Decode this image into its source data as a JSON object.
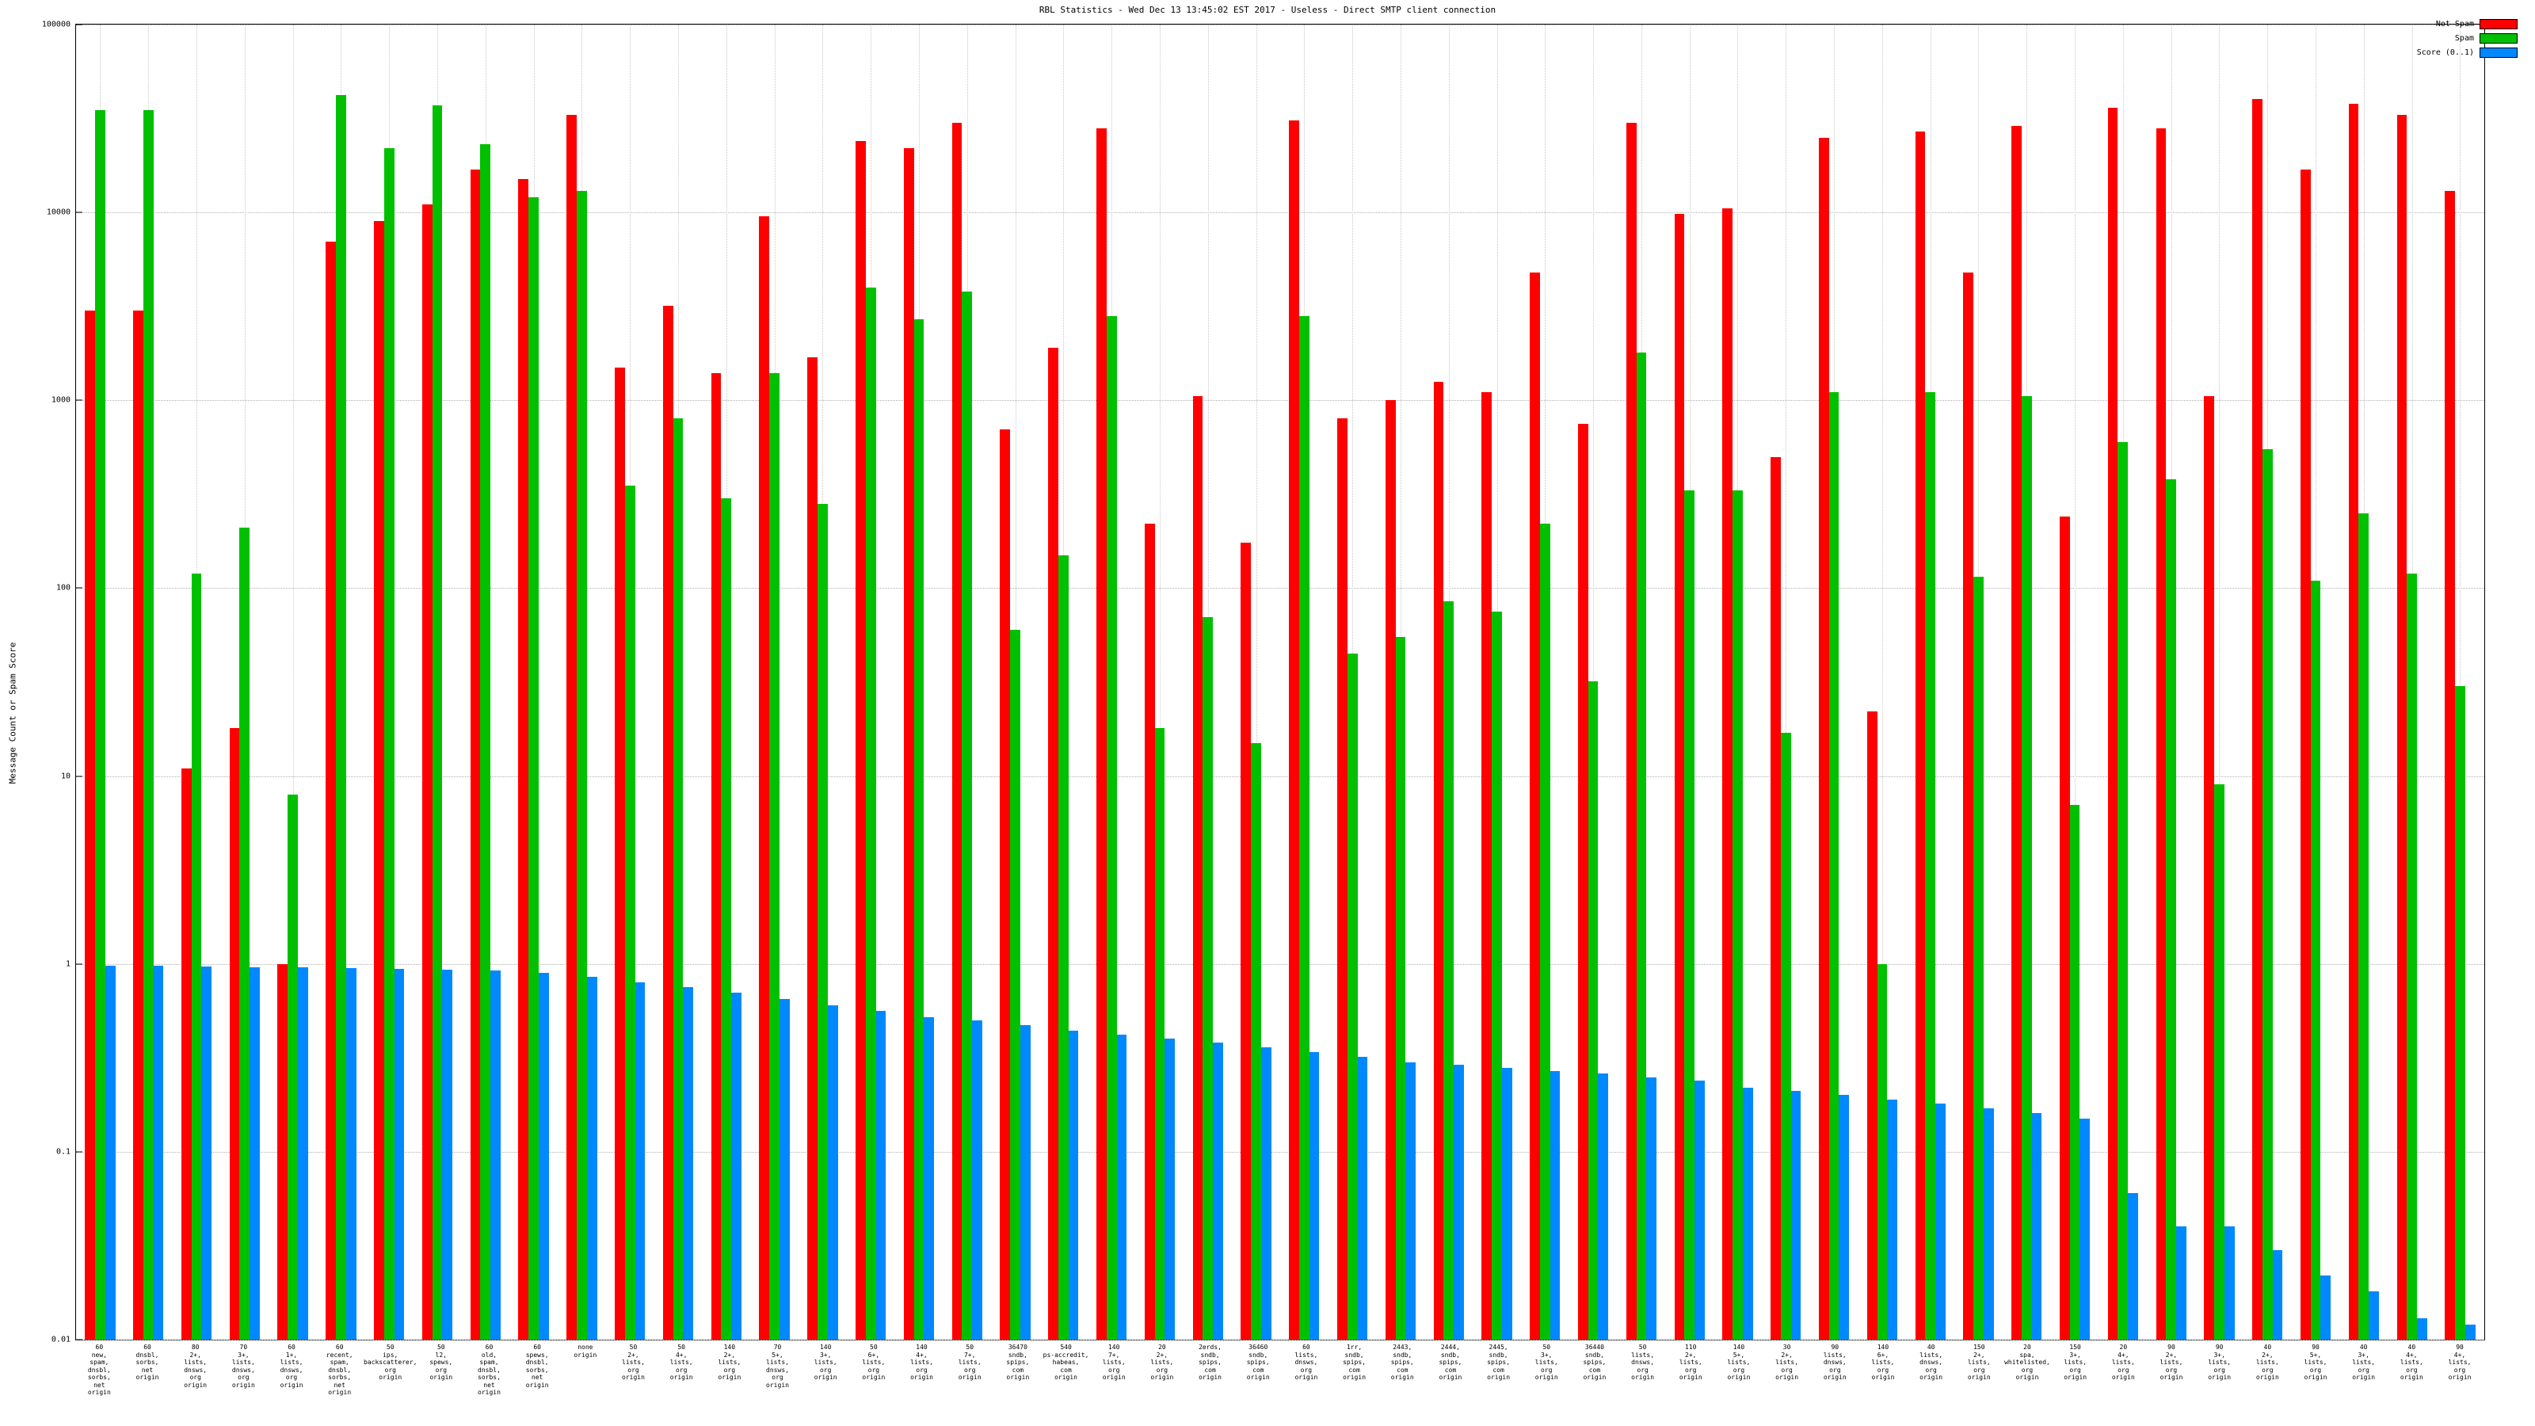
{
  "title": "RBL Statistics - Wed Dec 13 13:45:02 EST 2017 - Useless - Direct SMTP client connection",
  "chart_data": {
    "type": "bar",
    "title": "RBL Statistics - Wed Dec 13 13:45:02 EST 2017 - Useless - Direct SMTP client connection",
    "ylabel": "Message Count or Spam Score",
    "xlabel": "",
    "log_scale": true,
    "grid": true,
    "legend_position": "top-right",
    "ylim": [
      0.01,
      100000
    ],
    "y_ticks": [
      "100000",
      "10000",
      "1000",
      "100",
      "10",
      "1",
      "0.1",
      "0.01"
    ],
    "categories": [
      [
        "60",
        "new,",
        "spam,",
        "dnsbl,",
        "sorbs,",
        "net",
        "origin"
      ],
      [
        "60",
        "dnsbl,",
        "sorbs,",
        "net",
        "origin"
      ],
      [
        "80",
        "2+,",
        "lists,",
        "dnsws,",
        "org",
        "origin"
      ],
      [
        "70",
        "3+,",
        "lists,",
        "dnsws,",
        "org",
        "origin"
      ],
      [
        "60",
        "1+,",
        "lists,",
        "dnsws,",
        "org",
        "origin"
      ],
      [
        "60",
        "recent,",
        "spam,",
        "dnsbl,",
        "sorbs,",
        "net",
        "origin"
      ],
      [
        "50",
        "ips,",
        "backscatterer,",
        "org",
        "origin"
      ],
      [
        "50",
        "l2,",
        "spews,",
        "org",
        "origin"
      ],
      [
        "60",
        "old,",
        "spam,",
        "dnsbl,",
        "sorbs,",
        "net",
        "origin"
      ],
      [
        "60",
        "spews,",
        "dnsbl,",
        "sorbs,",
        "net",
        "origin"
      ],
      [
        "none",
        "origin"
      ],
      [
        "50",
        "2+,",
        "lists,",
        "org",
        "origin"
      ],
      [
        "50",
        "4+,",
        "lists,",
        "org",
        "origin"
      ],
      [
        "140",
        "2+,",
        "lists,",
        "org",
        "origin"
      ],
      [
        "70",
        "5+,",
        "lists,",
        "dnsws,",
        "org",
        "origin"
      ],
      [
        "140",
        "3+,",
        "lists,",
        "org",
        "origin"
      ],
      [
        "50",
        "6+,",
        "lists,",
        "org",
        "origin"
      ],
      [
        "140",
        "4+,",
        "lists,",
        "org",
        "origin"
      ],
      [
        "50",
        "7+,",
        "lists,",
        "org",
        "origin"
      ],
      [
        "36470",
        "sndb,",
        "spips,",
        "com",
        "origin"
      ],
      [
        "540",
        "ps-accredit,",
        "habeas,",
        "com",
        "origin"
      ],
      [
        "140",
        "7+,",
        "lists,",
        "org",
        "origin"
      ],
      [
        "20",
        "2+,",
        "lists,",
        "org",
        "origin"
      ],
      [
        "2erds,",
        "sndb,",
        "spips,",
        "com",
        "origin"
      ],
      [
        "36460",
        "sndb,",
        "spips,",
        "com",
        "origin"
      ],
      [
        "60",
        "lists,",
        "dnsws,",
        "org",
        "origin"
      ],
      [
        "1rr,",
        "sndb,",
        "spips,",
        "com",
        "origin"
      ],
      [
        "2443,",
        "sndb,",
        "spips,",
        "com",
        "origin"
      ],
      [
        "2444,",
        "sndb,",
        "spips,",
        "com",
        "origin"
      ],
      [
        "2445,",
        "sndb,",
        "spips,",
        "com",
        "origin"
      ],
      [
        "50",
        "3+,",
        "lists,",
        "org",
        "origin"
      ],
      [
        "36440",
        "sndb,",
        "spips,",
        "com",
        "origin"
      ],
      [
        "50",
        "lists,",
        "dnsws,",
        "org",
        "origin"
      ],
      [
        "110",
        "2+,",
        "lists,",
        "org",
        "origin"
      ],
      [
        "140",
        "5+,",
        "lists,",
        "org",
        "origin"
      ],
      [
        "30",
        "2+,",
        "lists,",
        "org",
        "origin"
      ],
      [
        "90",
        "lists,",
        "dnsws,",
        "org",
        "origin"
      ],
      [
        "140",
        "6+,",
        "lists,",
        "org",
        "origin"
      ],
      [
        "40",
        "lists,",
        "dnsws,",
        "org",
        "origin"
      ],
      [
        "150",
        "2+,",
        "lists,",
        "org",
        "origin"
      ],
      [
        "20",
        "spa,",
        "whitelisted,",
        "org",
        "origin"
      ],
      [
        "150",
        "3+,",
        "lists,",
        "org",
        "origin"
      ],
      [
        "20",
        "4+,",
        "lists,",
        "org",
        "origin"
      ],
      [
        "90",
        "2+,",
        "lists,",
        "org",
        "origin"
      ],
      [
        "90",
        "3+,",
        "lists,",
        "org",
        "origin"
      ],
      [
        "40",
        "2+,",
        "lists,",
        "org",
        "origin"
      ],
      [
        "90",
        "5+,",
        "lists,",
        "org",
        "origin"
      ],
      [
        "40",
        "3+,",
        "lists,",
        "org",
        "origin"
      ],
      [
        "40",
        "4+,",
        "lists,",
        "org",
        "origin"
      ],
      [
        "90",
        "4+,",
        "lists,",
        "org",
        "origin"
      ]
    ],
    "series": [
      {
        "name": "Not Spam",
        "color": "#ff0000",
        "values": [
          3000,
          3000,
          11,
          18,
          1,
          7000,
          9000,
          11000,
          17000,
          15000,
          33000,
          1500,
          3200,
          1400,
          9500,
          1700,
          24000,
          22000,
          30000,
          700,
          1900,
          28000,
          220,
          1050,
          175,
          31000,
          800,
          1000,
          1250,
          1100,
          4800,
          750,
          30000,
          9800,
          10500,
          500,
          25000,
          22,
          27000,
          4800,
          29000,
          240,
          36000,
          28000,
          1050,
          40000,
          17000,
          38000,
          33000,
          13000
        ]
      },
      {
        "name": "Spam",
        "color": "#00c000",
        "values": [
          35000,
          35000,
          120,
          210,
          8,
          42000,
          22000,
          37000,
          23000,
          12000,
          13000,
          350,
          800,
          300,
          1400,
          280,
          4000,
          2700,
          3800,
          60,
          150,
          2800,
          18,
          70,
          15,
          2800,
          45,
          55,
          85,
          75,
          220,
          32,
          1800,
          330,
          330,
          17,
          1100,
          1,
          1100,
          115,
          1050,
          7,
          600,
          380,
          9,
          550,
          110,
          250,
          120,
          30
        ]
      },
      {
        "name": "Score (0..1)",
        "color": "#0088ff",
        "values": [
          0.98,
          0.98,
          0.97,
          0.96,
          0.96,
          0.95,
          0.94,
          0.93,
          0.92,
          0.9,
          0.85,
          0.8,
          0.75,
          0.7,
          0.65,
          0.6,
          0.56,
          0.52,
          0.5,
          0.47,
          0.44,
          0.42,
          0.4,
          0.38,
          0.36,
          0.34,
          0.32,
          0.3,
          0.29,
          0.28,
          0.27,
          0.26,
          0.25,
          0.24,
          0.22,
          0.21,
          0.2,
          0.19,
          0.18,
          0.17,
          0.16,
          0.15,
          0.06,
          0.04,
          0.04,
          0.03,
          0.022,
          0.018,
          0.013,
          0.012
        ]
      }
    ]
  }
}
